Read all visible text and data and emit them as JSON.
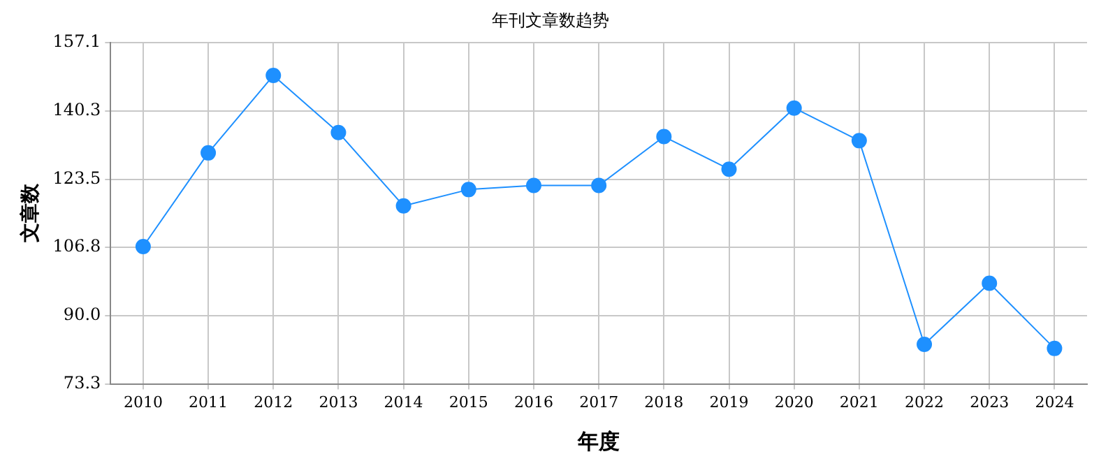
{
  "chart_data": {
    "type": "line",
    "title": "年刊文章数趋势",
    "xlabel": "年度",
    "ylabel": "文章数",
    "categories": [
      "2010",
      "2011",
      "2012",
      "2013",
      "2014",
      "2015",
      "2016",
      "2017",
      "2018",
      "2019",
      "2020",
      "2021",
      "2022",
      "2023",
      "2024"
    ],
    "series": [
      {
        "color": "#1e90ff",
        "values": [
          107,
          130,
          149,
          135,
          117,
          121,
          122,
          122,
          134,
          126,
          141,
          133,
          83,
          98,
          82
        ]
      }
    ],
    "ylim": [
      73.3,
      157.1
    ],
    "yticks": [
      {
        "value": 73.3,
        "label": "73.3"
      },
      {
        "value": 90,
        "label": "90.0"
      },
      {
        "value": 106.8,
        "label": "106.8"
      },
      {
        "value": 123.5,
        "label": "123.5"
      },
      {
        "value": 140.3,
        "label": "140.3"
      },
      {
        "value": 157.1,
        "label": "157.1"
      }
    ],
    "grid": true,
    "legend": false,
    "marker": "circle",
    "line_style": "solid"
  }
}
